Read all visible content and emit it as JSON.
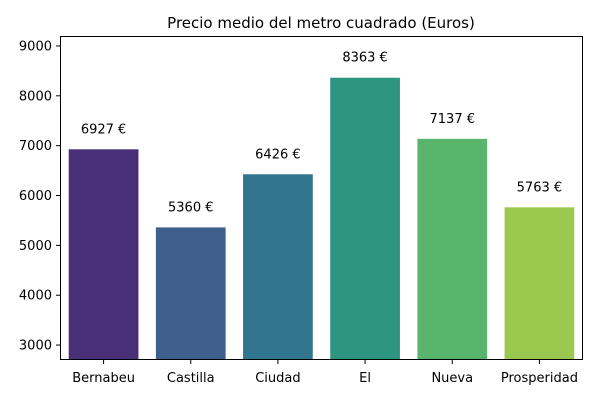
{
  "chart_data": {
    "type": "bar",
    "title": "Precio medio del metro cuadrado (Euros)",
    "xlabel": "",
    "ylabel": "",
    "categories": [
      "Bernabeu",
      "Castilla",
      "Ciudad",
      "El",
      "Nueva",
      "Prosperidad"
    ],
    "values": [
      6927,
      5360,
      6426,
      8363,
      7137,
      5763
    ],
    "data_labels": [
      "6927 €",
      "5360 €",
      "6426 €",
      "8363 €",
      "7137 €",
      "5763 €"
    ],
    "colors": [
      "#482f77",
      "#3e5f8a",
      "#31768e",
      "#2e9680",
      "#5ab56c",
      "#9bc84f"
    ],
    "ylim": [
      2700,
      9200
    ],
    "yticks": [
      3000,
      4000,
      5000,
      6000,
      7000,
      8000,
      9000
    ],
    "grid": false,
    "legend": "none"
  }
}
